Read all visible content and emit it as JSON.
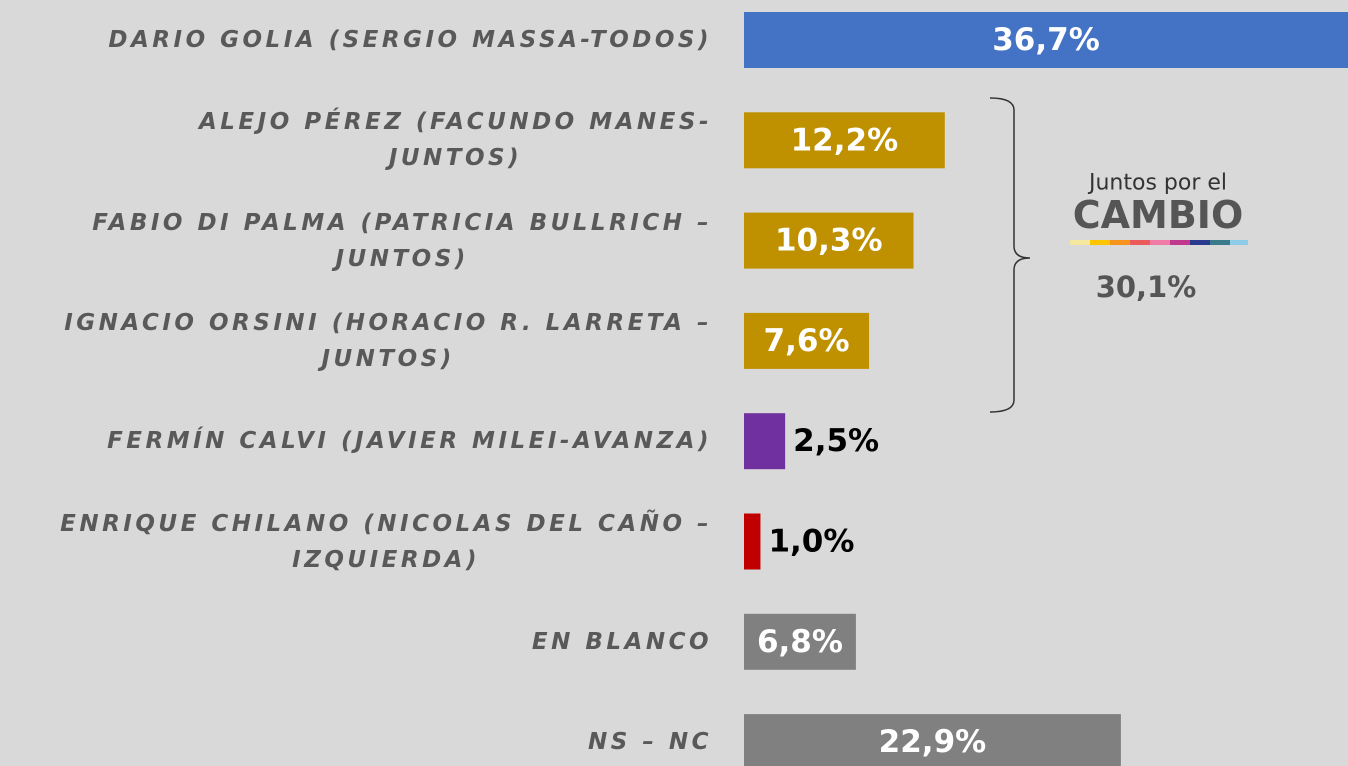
{
  "chart_data": {
    "type": "bar",
    "orientation": "horizontal",
    "categories": [
      "DARIO GOLIA (SERGIO MASSA-TODOS)",
      "ALEJO PÉREZ (FACUNDO MANES-\nJUNTOS)",
      "FABIO DI PALMA (PATRICIA BULLRICH –\nJUNTOS)",
      "IGNACIO ORSINI (HORACIO R. LARRETA –\nJUNTOS)",
      "FERMÍN CALVI (JAVIER MILEI-AVANZA)",
      "ENRIQUE CHILANO (NICOLAS DEL CAÑO –\nIZQUIERDA)",
      "EN BLANCO",
      "NS – NC"
    ],
    "values": [
      36.7,
      12.2,
      10.3,
      7.6,
      2.5,
      1.0,
      6.8,
      22.9
    ],
    "value_labels": [
      "36,7%",
      "12,2%",
      "10,3%",
      "7,6%",
      "2,5%",
      "1,0%",
      "6,8%",
      "22,9%"
    ],
    "colors": [
      "#4472c4",
      "#bf9000",
      "#bf9000",
      "#bf9000",
      "#7030a0",
      "#c00000",
      "#808080",
      "#808080"
    ],
    "xlim": [
      0,
      36.7
    ],
    "annotations": [
      "Juntos por el",
      "CAMBIO",
      "30,1%"
    ]
  }
}
